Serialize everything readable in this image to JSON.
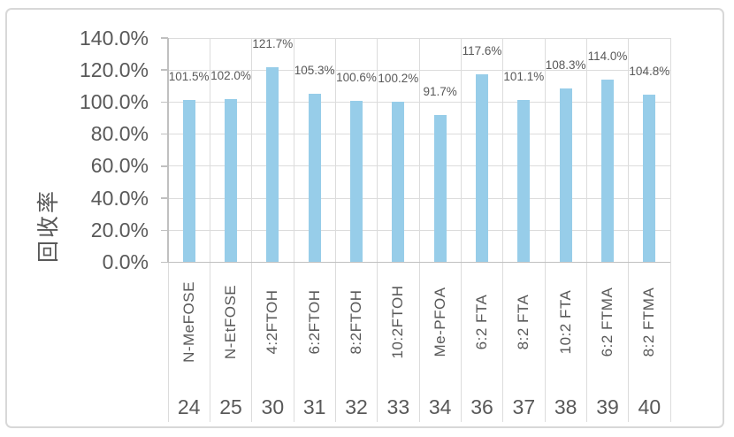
{
  "chart_data": {
    "type": "bar",
    "title": "",
    "ylabel": "回收率",
    "xlabel": "",
    "categories": [
      "N-MeFOSE",
      "N-EtFOSE",
      "4:2FTOH",
      "6:2FTOH",
      "8:2FTOH",
      "10:2FTOH",
      "Me-PFOA",
      "6:2 FTA",
      "8:2 FTA",
      "10:2 FTA",
      "6:2 FTMA",
      "8:2 FTMA"
    ],
    "category_numbers": [
      "24",
      "25",
      "30",
      "31",
      "32",
      "33",
      "34",
      "36",
      "37",
      "38",
      "39",
      "40"
    ],
    "values": [
      101.5,
      102.0,
      121.7,
      105.3,
      100.6,
      100.2,
      91.7,
      117.6,
      101.1,
      108.3,
      114.0,
      104.8
    ],
    "value_labels": [
      "101.5%",
      "102.0%",
      "121.7%",
      "105.3%",
      "100.6%",
      "100.2%",
      "91.7%",
      "117.6%",
      "101.1%",
      "108.3%",
      "114.0%",
      "104.8%"
    ],
    "y_tick_labels": [
      "0.0%",
      "20.0%",
      "40.0%",
      "60.0%",
      "80.0%",
      "100.0%",
      "120.0%",
      "140.0%"
    ],
    "ylim": [
      0,
      140
    ],
    "y_tick_step": 20,
    "grid": "both",
    "legend": "none",
    "colors": {
      "bar": "#97CDE9",
      "gridline": "#DCDCDC",
      "axis": "#C0C0C0",
      "text": "#595959",
      "border": "#D8D8D8",
      "background": "#FFFFFF"
    }
  }
}
